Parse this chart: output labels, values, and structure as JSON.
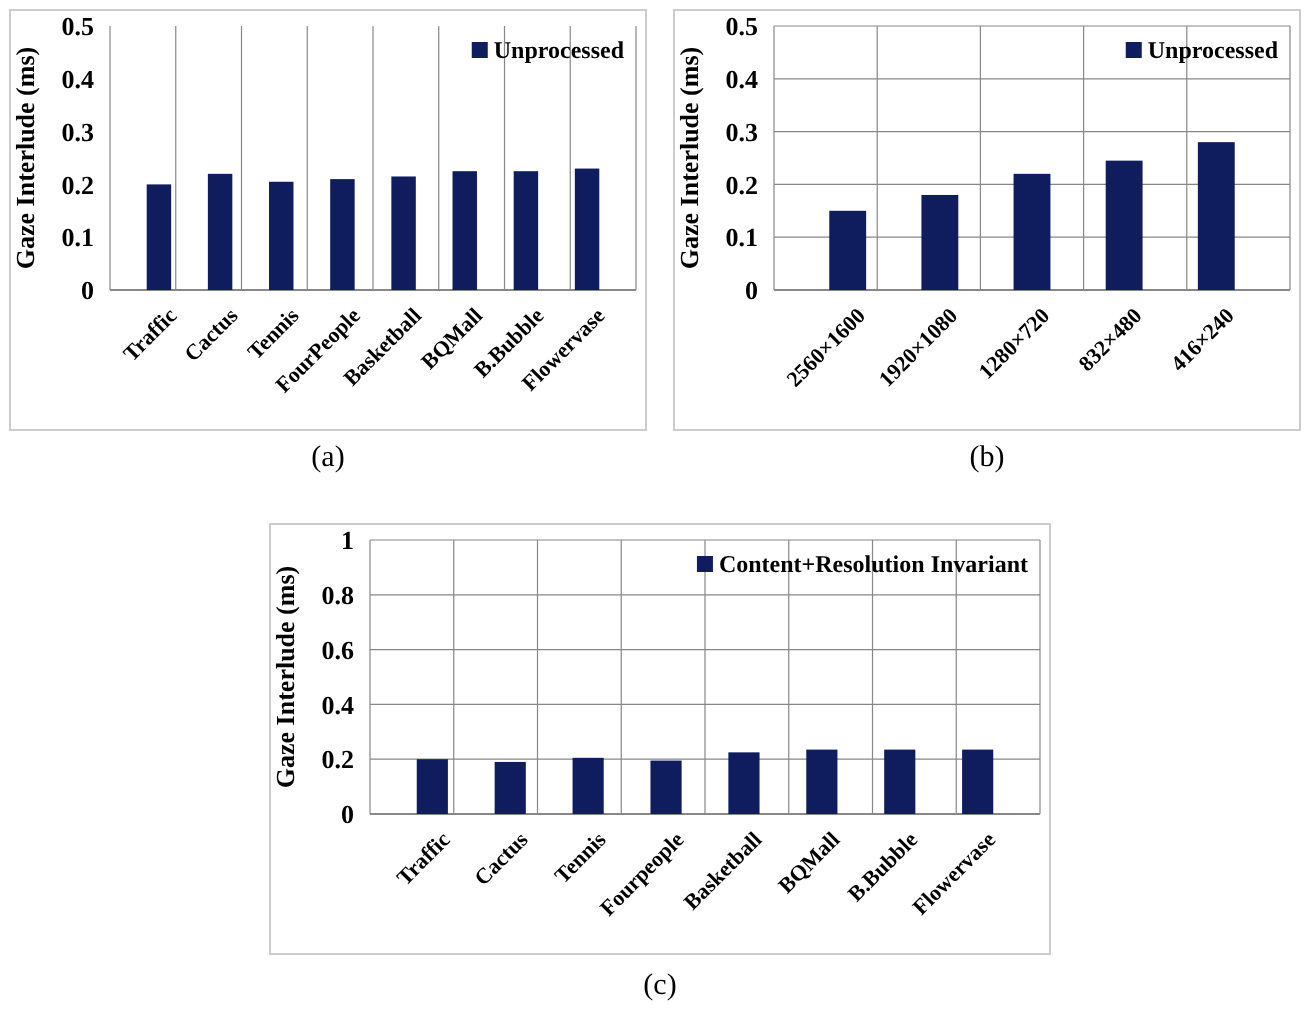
{
  "chart_data": [
    {
      "type": "bar",
      "ylabel": "Gaze Interlude (ms)",
      "categories": [
        "Traffic",
        "Cactus",
        "Tennis",
        "FourPeople",
        "Basketball",
        "BQMall",
        "B.Bubble",
        "Flowervase"
      ],
      "series": [
        {
          "name": "Unprocessed",
          "color": "#0f1d5e",
          "values": [
            0.2,
            0.22,
            0.205,
            0.21,
            0.215,
            0.225,
            0.225,
            0.23
          ]
        }
      ],
      "ylim": [
        0,
        0.5
      ],
      "yticks": [
        0,
        0.1,
        0.2,
        0.3,
        0.4,
        0.5
      ],
      "grid": "x",
      "legend": "top right",
      "annotations": [
        "(a)"
      ]
    },
    {
      "type": "bar",
      "ylabel": "Gaze Interlude (ms)",
      "categories": [
        "2560×1600",
        "1920×1080",
        "1280×720",
        "832×480",
        "416×240"
      ],
      "series": [
        {
          "name": "Unprocessed",
          "color": "#0f1d5e",
          "values": [
            0.15,
            0.18,
            0.22,
            0.245,
            0.28
          ]
        }
      ],
      "ylim": [
        0,
        0.5
      ],
      "yticks": [
        0,
        0.1,
        0.2,
        0.3,
        0.4,
        0.5
      ],
      "grid": true,
      "legend": "top right",
      "annotations": [
        "(b)"
      ]
    },
    {
      "type": "bar",
      "ylabel": "Gaze Interlude (ms)",
      "categories": [
        "Traffic",
        "Cactus",
        "Tennis",
        "Fourpeople",
        "Basketball",
        "BQMall",
        "B.Bubble",
        "Flowervase"
      ],
      "series": [
        {
          "name": "Content+Resolution Invariant",
          "color": "#0f1d5e",
          "values": [
            0.2,
            0.19,
            0.205,
            0.195,
            0.225,
            0.235,
            0.235,
            0.235
          ]
        }
      ],
      "ylim": [
        0,
        1
      ],
      "yticks": [
        0,
        0.2,
        0.4,
        0.6,
        0.8,
        1
      ],
      "grid": true,
      "legend": "top right",
      "annotations": [
        "(c)"
      ]
    }
  ]
}
